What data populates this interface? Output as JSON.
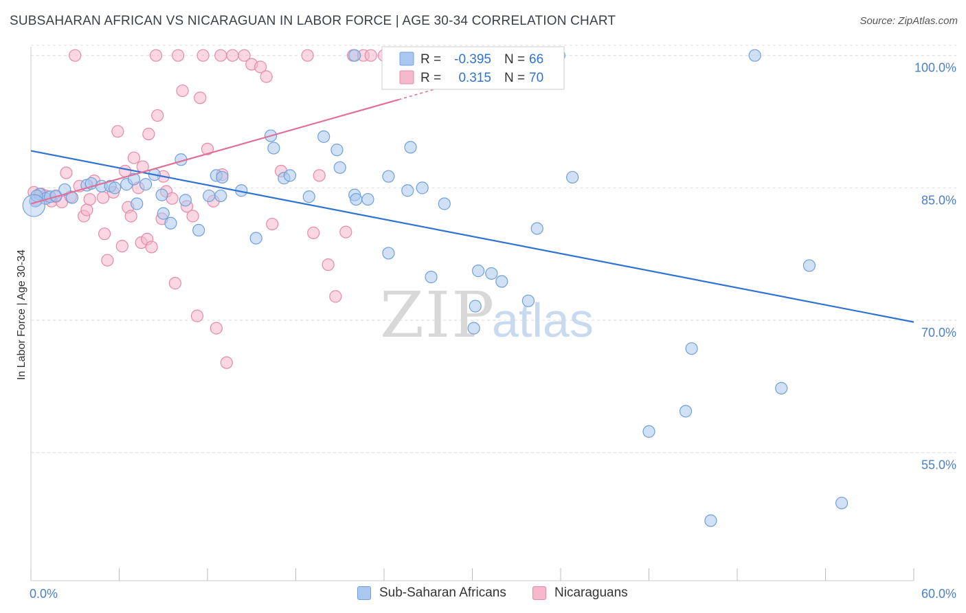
{
  "title": "SUBSAHARAN AFRICAN VS NICARAGUAN IN LABOR FORCE | AGE 30-34 CORRELATION CHART",
  "source": "Source: ZipAtlas.com",
  "watermark": {
    "zip": "ZIP",
    "atlas": "atlas"
  },
  "colors": {
    "blue_fill": "#aac8ef",
    "blue_stroke": "#6f9fdd",
    "blue_line": "#2f72d3",
    "pink_fill": "#f5b7ca",
    "pink_stroke": "#e58aa8",
    "pink_line": "#e0709a",
    "tick_text": "#4a7fcc",
    "grid": "#dddddd"
  },
  "legend": {
    "r_label": "R =",
    "n_label": "N =",
    "rows": [
      {
        "r": "-0.395",
        "n": "66"
      },
      {
        "r": "0.315",
        "n": "70"
      }
    ]
  },
  "chart_data": {
    "type": "scatter",
    "title": "SUBSAHARAN AFRICAN VS NICARAGUAN IN LABOR FORCE | AGE 30-34 CORRELATION CHART",
    "xlabel": "",
    "ylabel": "In Labor Force | Age 30-34",
    "xlim": [
      0,
      60
    ],
    "ylim": [
      40.5,
      102
    ],
    "x_tick_labels": [
      "0.0%",
      "60.0%"
    ],
    "y_ticks": [
      55,
      70,
      85,
      100
    ],
    "y_tick_labels": [
      "55.0%",
      "70.0%",
      "85.0%",
      "100.0%"
    ],
    "grid": true,
    "legend_position": "top-center",
    "series": [
      {
        "name": "Sub-Saharan Africans",
        "color": "#aac8ef",
        "trend": {
          "x": [
            0,
            60
          ],
          "y": [
            89.2,
            69.8
          ]
        },
        "points": [
          [
            0.3,
            83.5
          ],
          [
            0.6,
            84.3
          ],
          [
            1.0,
            83.8
          ],
          [
            1.3,
            84.0
          ],
          [
            1.7,
            84.1
          ],
          [
            2.3,
            84.8
          ],
          [
            2.8,
            83.9
          ],
          [
            3.8,
            85.3
          ],
          [
            4.1,
            85.5
          ],
          [
            4.8,
            85.2
          ],
          [
            5.4,
            85.2
          ],
          [
            5.7,
            85.0
          ],
          [
            6.5,
            85.4
          ],
          [
            7.0,
            86.0
          ],
          [
            7.2,
            83.2
          ],
          [
            7.8,
            85.4
          ],
          [
            8.4,
            86.5
          ],
          [
            8.9,
            84.2
          ],
          [
            9.0,
            82.1
          ],
          [
            9.5,
            81.0
          ],
          [
            10.2,
            88.2
          ],
          [
            10.5,
            83.6
          ],
          [
            12.1,
            84.1
          ],
          [
            11.4,
            80.2
          ],
          [
            12.6,
            86.4
          ],
          [
            13.0,
            86.2
          ],
          [
            12.9,
            84.1
          ],
          [
            14.3,
            84.7
          ],
          [
            16.3,
            90.9
          ],
          [
            16.5,
            89.5
          ],
          [
            17.2,
            86.1
          ],
          [
            17.6,
            86.4
          ],
          [
            15.3,
            79.3
          ],
          [
            18.9,
            84.0
          ],
          [
            19.9,
            90.8
          ],
          [
            20.8,
            89.3
          ],
          [
            21.0,
            87.3
          ],
          [
            22.0,
            84.2
          ],
          [
            22.1,
            83.7
          ],
          [
            22.9,
            83.7
          ],
          [
            24.3,
            86.3
          ],
          [
            24.3,
            77.6
          ],
          [
            25.6,
            84.7
          ],
          [
            25.8,
            89.6
          ],
          [
            26.6,
            85.0
          ],
          [
            27.2,
            74.9
          ],
          [
            28.1,
            83.2
          ],
          [
            30.1,
            69.1
          ],
          [
            30.2,
            71.6
          ],
          [
            30.4,
            75.6
          ],
          [
            31.3,
            75.3
          ],
          [
            32.0,
            74.4
          ],
          [
            33.8,
            72.2
          ],
          [
            34.4,
            80.4
          ],
          [
            35.9,
            100.0
          ],
          [
            36.8,
            86.2
          ],
          [
            49.2,
            100.0
          ],
          [
            42.0,
            57.4
          ],
          [
            44.5,
            59.7
          ],
          [
            44.9,
            66.8
          ],
          [
            46.2,
            47.3
          ],
          [
            51.0,
            62.3
          ],
          [
            52.9,
            76.2
          ],
          [
            55.1,
            49.3
          ],
          [
            0.4,
            84.1
          ],
          [
            22.0,
            100.0
          ]
        ]
      },
      {
        "name": "Nicaraguans",
        "color": "#f5b7ca",
        "trend": {
          "x": [
            0,
            25
          ],
          "y": [
            83.2,
            95.0
          ]
        },
        "trend_dashed": {
          "x": [
            25,
            30
          ],
          "y": [
            95.0,
            97.4
          ]
        },
        "points": [
          [
            0.2,
            84.5
          ],
          [
            0.4,
            83.6
          ],
          [
            0.7,
            84.3
          ],
          [
            1.0,
            84.1
          ],
          [
            1.4,
            83.5
          ],
          [
            1.7,
            84.0
          ],
          [
            2.1,
            83.4
          ],
          [
            2.4,
            86.7
          ],
          [
            2.7,
            84.0
          ],
          [
            3.3,
            85.2
          ],
          [
            3.6,
            81.8
          ],
          [
            3.8,
            82.5
          ],
          [
            4.0,
            83.7
          ],
          [
            4.3,
            85.8
          ],
          [
            4.9,
            83.9
          ],
          [
            5.0,
            79.8
          ],
          [
            5.2,
            76.8
          ],
          [
            5.6,
            84.5
          ],
          [
            5.9,
            91.4
          ],
          [
            6.2,
            78.4
          ],
          [
            6.4,
            86.9
          ],
          [
            6.6,
            82.8
          ],
          [
            6.8,
            81.8
          ],
          [
            7.0,
            88.4
          ],
          [
            7.3,
            85.0
          ],
          [
            7.5,
            78.8
          ],
          [
            7.6,
            87.4
          ],
          [
            7.9,
            79.2
          ],
          [
            8.0,
            91.1
          ],
          [
            8.2,
            78.3
          ],
          [
            8.6,
            93.2
          ],
          [
            8.9,
            81.5
          ],
          [
            9.0,
            86.3
          ],
          [
            9.2,
            84.6
          ],
          [
            9.6,
            83.8
          ],
          [
            9.8,
            74.2
          ],
          [
            10.3,
            96.0
          ],
          [
            10.6,
            82.9
          ],
          [
            11.0,
            81.8
          ],
          [
            11.3,
            70.5
          ],
          [
            11.5,
            95.2
          ],
          [
            12.0,
            89.4
          ],
          [
            12.4,
            83.5
          ],
          [
            12.6,
            69.1
          ],
          [
            13.0,
            86.5
          ],
          [
            13.3,
            65.2
          ],
          [
            13.7,
            100.0
          ],
          [
            14.5,
            100.0
          ],
          [
            15.0,
            99.0
          ],
          [
            15.6,
            98.7
          ],
          [
            16.0,
            97.6
          ],
          [
            16.4,
            80.9
          ],
          [
            17.0,
            86.9
          ],
          [
            18.8,
            100.0
          ],
          [
            19.2,
            79.9
          ],
          [
            19.6,
            86.4
          ],
          [
            20.2,
            76.3
          ],
          [
            20.7,
            72.7
          ],
          [
            21.4,
            80.0
          ],
          [
            21.9,
            100.0
          ],
          [
            22.6,
            100.0
          ],
          [
            23.1,
            100.0
          ],
          [
            24.0,
            100.0
          ],
          [
            24.9,
            100.0
          ],
          [
            26.3,
            100.0
          ],
          [
            8.5,
            100.0
          ],
          [
            10.0,
            100.0
          ],
          [
            11.7,
            100.0
          ],
          [
            12.9,
            100.0
          ],
          [
            3.0,
            100.0
          ]
        ]
      }
    ]
  }
}
